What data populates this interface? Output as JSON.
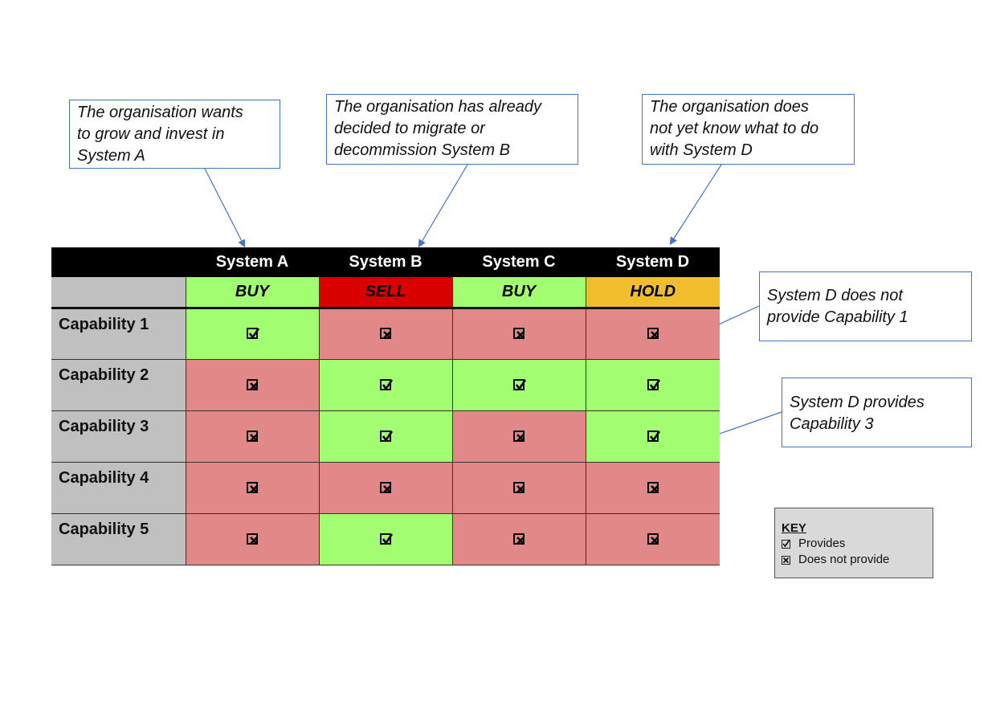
{
  "callouts": [
    {
      "id": "system-a-note",
      "text_lines": [
        "The organisation wants",
        "to grow and invest in",
        "System A"
      ]
    },
    {
      "id": "system-b-note",
      "text_lines": [
        "The organisation has already",
        "decided to migrate or",
        "decommission System B"
      ]
    },
    {
      "id": "system-d-note",
      "text_lines": [
        "The organisation does",
        "not yet know what to do",
        "with System D"
      ]
    },
    {
      "id": "system-d-cap1-note",
      "text_lines": [
        "System D does not",
        "provide Capability 1"
      ]
    },
    {
      "id": "system-d-cap3-note",
      "text_lines": [
        "System D provides",
        "Capability 3"
      ]
    }
  ],
  "matrix": {
    "systems": [
      {
        "name": "System A",
        "rating": "BUY",
        "rating_color": "#a3fd70",
        "rating_text_color": "#000000"
      },
      {
        "name": "System B",
        "rating": "SELL",
        "rating_color": "#d90000",
        "rating_text_color": "#000000"
      },
      {
        "name": "System C",
        "rating": "BUY",
        "rating_color": "#a3fd70",
        "rating_text_color": "#000000"
      },
      {
        "name": "System D",
        "rating": "HOLD",
        "rating_color": "#f0be2c",
        "rating_text_color": "#000000"
      }
    ],
    "capabilities": [
      {
        "name": "Capability 1",
        "provides": [
          true,
          false,
          false,
          false
        ]
      },
      {
        "name": "Capability 2",
        "provides": [
          false,
          true,
          true,
          true
        ]
      },
      {
        "name": "Capability 3",
        "provides": [
          false,
          true,
          false,
          true
        ]
      },
      {
        "name": "Capability 4",
        "provides": [
          false,
          false,
          false,
          false
        ]
      },
      {
        "name": "Capability 5",
        "provides": [
          false,
          true,
          false,
          false
        ]
      }
    ],
    "colors": {
      "provides": "#a3fd70",
      "does_not_provide": "#e38888",
      "row_header": "#c0c0c0",
      "header": "#000000"
    }
  },
  "key": {
    "title": "KEY",
    "items": [
      {
        "icon": "checked-box-icon",
        "label": "Provides"
      },
      {
        "icon": "crossed-box-icon",
        "label": "Does not provide"
      }
    ]
  }
}
